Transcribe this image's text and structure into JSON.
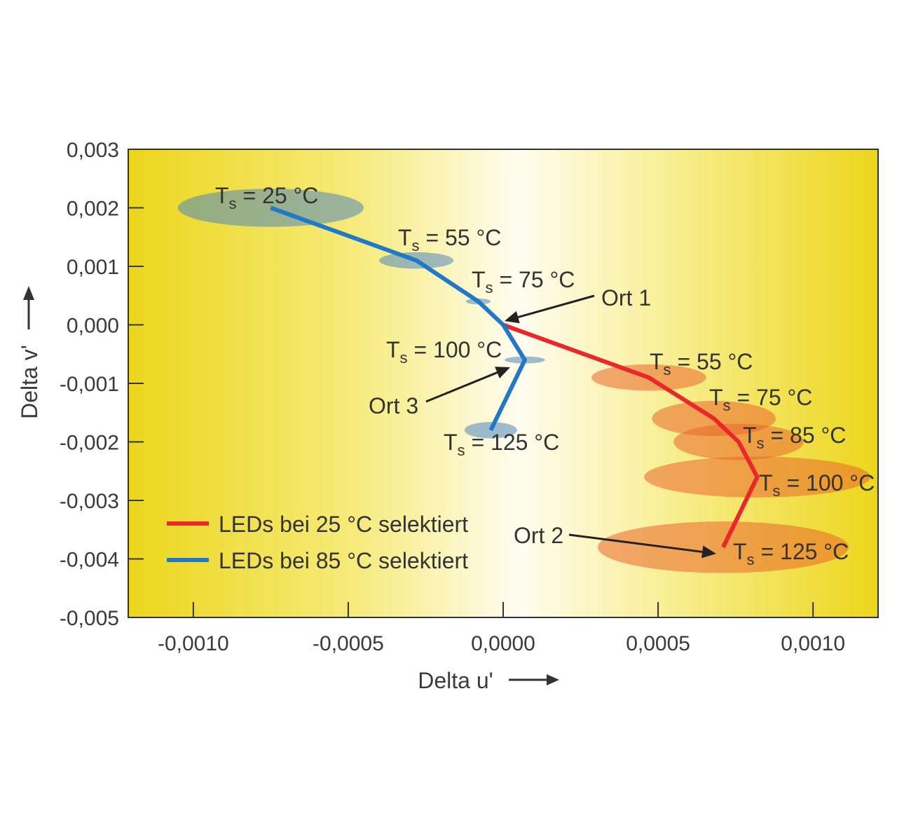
{
  "chart_data": {
    "type": "line",
    "xlabel": "Delta u'",
    "ylabel": "Delta v'",
    "xlim": [
      -0.00121,
      0.00121
    ],
    "ylim": [
      -0.005,
      0.003
    ],
    "xticks": [
      "-0,0010",
      "-0,0005",
      "0,0000",
      "0,0005",
      "0,0010"
    ],
    "xtick_values": [
      -0.001,
      -0.0005,
      0.0,
      0.0005,
      0.001
    ],
    "yticks": [
      "0,003",
      "0,002",
      "0,001",
      "0,000",
      "-0,001",
      "-0,002",
      "-0,003",
      "-0,004",
      "-0,005"
    ],
    "ytick_values": [
      0.003,
      0.002,
      0.001,
      0.0,
      -0.001,
      -0.002,
      -0.003,
      -0.004,
      -0.005
    ],
    "grid": false,
    "background": "yellow-white-yellow gradient",
    "legend_position": "bottom-left",
    "series": [
      {
        "name": "LEDs bei 25 °C selektiert",
        "color": "#e8282a",
        "points": [
          {
            "x": 0.0,
            "y": 0.0,
            "label": ""
          },
          {
            "x": 0.00047,
            "y": -0.0009,
            "label": "55 °C",
            "spread": [
              0.00037,
              0.00045
            ]
          },
          {
            "x": 0.00068,
            "y": -0.0016,
            "label": "75 °C",
            "spread": [
              0.0004,
              0.0006
            ]
          },
          {
            "x": 0.00076,
            "y": -0.002,
            "label": "85 °C",
            "spread": [
              0.00042,
              0.00062
            ]
          },
          {
            "x": 0.00082,
            "y": -0.0026,
            "label": "100 °C",
            "spread": [
              0.00073,
              0.0007
            ]
          },
          {
            "x": 0.00071,
            "y": -0.0038,
            "label": "125 °C",
            "spread": [
              0.00081,
              0.00088
            ]
          }
        ]
      },
      {
        "name": "LEDs bei 85 °C selektiert",
        "color": "#1f78c8",
        "points": [
          {
            "x": -0.00075,
            "y": 0.002,
            "label": "25 °C",
            "spread": [
              0.0006,
              0.00065
            ]
          },
          {
            "x": -0.00028,
            "y": 0.0011,
            "label": "55 °C",
            "spread": [
              0.00024,
              0.00028
            ]
          },
          {
            "x": -8e-05,
            "y": 0.0004,
            "label": "75 °C",
            "spread": [
              8e-05,
              0.0001
            ]
          },
          {
            "x": 0.0,
            "y": 0.0,
            "label": ""
          },
          {
            "x": 7e-05,
            "y": -0.0006,
            "label": "100 °C",
            "spread": [
              0.00013,
              0.00012
            ]
          },
          {
            "x": -4e-05,
            "y": -0.0018,
            "label": "125 °C",
            "spread": [
              0.00017,
              0.00028
            ]
          }
        ]
      }
    ],
    "series_label_prefix": "T",
    "series_label_subscript": "s",
    "series_label_suffix": "=",
    "annotations": [
      {
        "text": "Ort 1",
        "x": 0.0,
        "y": 0.0
      },
      {
        "text": "Ort 2",
        "x": 0.00071,
        "y": -0.0038
      },
      {
        "text": "Ort 3",
        "x": 3e-05,
        "y": -0.0007
      }
    ]
  }
}
